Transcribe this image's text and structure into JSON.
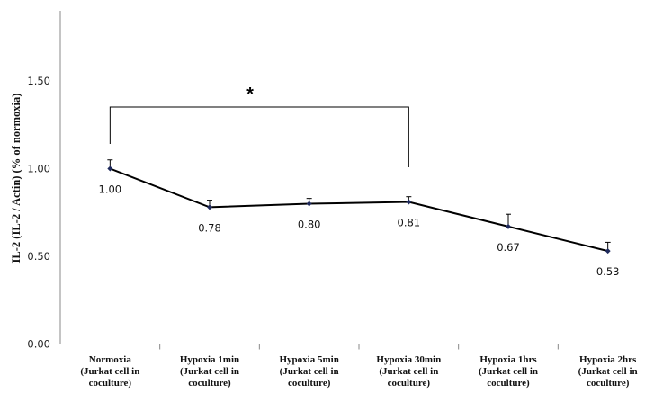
{
  "chart_data": {
    "type": "line",
    "title": "",
    "ylabel": "IL-2 (IL-2 / Actin) (% of normoxia)",
    "xlabel": "",
    "ylim": [
      0,
      1.9
    ],
    "yticks": [
      "0.00",
      "0.50",
      "1.00",
      "1.50"
    ],
    "categories": [
      [
        "Normoxia",
        "(Jurkat cell in",
        "coculture)"
      ],
      [
        "Hypoxia 1min",
        "(Jurkat cell in",
        "coculture)"
      ],
      [
        "Hypoxia 5min",
        "(Jurkat cell in",
        "coculture)"
      ],
      [
        "Hypoxia 30min",
        "(Jurkat cell in",
        "coculture)"
      ],
      [
        "Hypoxia 1hrs",
        "(Jurkat cell in",
        "coculture)"
      ],
      [
        "Hypoxia 2hrs",
        "(Jurkat cell in",
        "coculture)"
      ]
    ],
    "series": [
      {
        "values": [
          1.0,
          0.78,
          0.8,
          0.81,
          0.67,
          0.53
        ],
        "errors": [
          0.05,
          0.04,
          0.03,
          0.03,
          0.07,
          0.05
        ],
        "labels": [
          "1.00",
          "0.78",
          "0.80",
          "0.81",
          "0.67",
          "0.53"
        ],
        "color": "#000000"
      }
    ],
    "significance": {
      "from": 0,
      "to": 3,
      "label": "*"
    },
    "grid": false,
    "legend": "none"
  }
}
